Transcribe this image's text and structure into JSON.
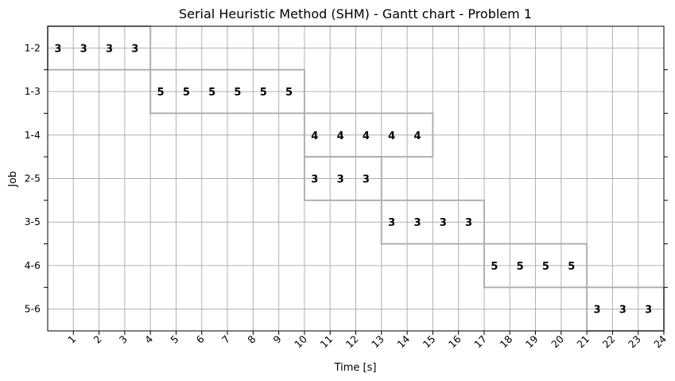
{
  "chart_data": {
    "type": "gantt",
    "title": "Serial Heuristic Method (SHM) - Gantt chart - Problem 1",
    "xlabel": "Time [s]",
    "ylabel": "Job",
    "xlim": [
      0,
      24
    ],
    "x_ticks": [
      "1",
      "2",
      "3",
      "4",
      "5",
      "6",
      "7",
      "8",
      "9",
      "10",
      "11",
      "12",
      "13",
      "14",
      "15",
      "16",
      "17",
      "18",
      "19",
      "20",
      "21",
      "22",
      "23",
      "24"
    ],
    "grid": true,
    "tasks": [
      {
        "job": "1-2",
        "start": 0,
        "end": 4,
        "value": "3"
      },
      {
        "job": "1-3",
        "start": 4,
        "end": 10,
        "value": "5"
      },
      {
        "job": "1-4",
        "start": 10,
        "end": 15,
        "value": "4"
      },
      {
        "job": "2-5",
        "start": 10,
        "end": 13,
        "value": "3"
      },
      {
        "job": "3-5",
        "start": 13,
        "end": 17,
        "value": "3"
      },
      {
        "job": "4-6",
        "start": 17,
        "end": 21,
        "value": "5"
      },
      {
        "job": "5-6",
        "start": 21,
        "end": 24,
        "value": "3"
      }
    ],
    "bar_edge_color": "#b0b0b0",
    "grid_color": "#b0b0b0"
  }
}
